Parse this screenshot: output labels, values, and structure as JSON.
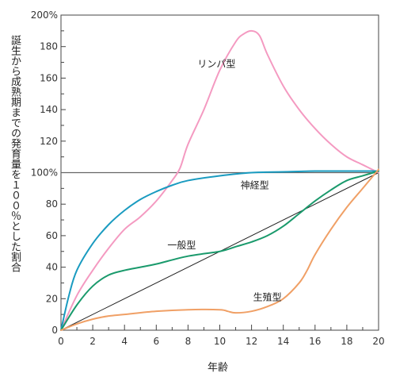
{
  "chart_data": {
    "type": "line",
    "xlabel": "年齢",
    "ylabel": "誕生から成熟期までの発育量を１００％とした割合",
    "xlim": [
      0,
      20
    ],
    "ylim": [
      0,
      200
    ],
    "x_ticks": [
      "0",
      "2",
      "4",
      "6",
      "8",
      "10",
      "12",
      "14",
      "16",
      "18",
      "20"
    ],
    "y_ticks": [
      "0",
      "20",
      "40",
      "60",
      "80",
      "100%",
      "120",
      "140",
      "160",
      "180",
      "200%"
    ],
    "reference_line_y": 100,
    "diagonal": {
      "x": [
        0,
        20
      ],
      "y": [
        0,
        100
      ]
    },
    "series": [
      {
        "name": "リンパ型",
        "color": "#f49ac1",
        "x": [
          0,
          1,
          2,
          3,
          4,
          5,
          6,
          7,
          7.5,
          8,
          9,
          10,
          11,
          11.5,
          12,
          12.5,
          13,
          14,
          15,
          16,
          17,
          18,
          19,
          20
        ],
        "y": [
          0,
          22,
          38,
          52,
          64,
          72,
          82,
          95,
          103,
          118,
          140,
          165,
          183,
          188,
          190,
          187,
          175,
          155,
          140,
          128,
          118,
          110,
          105,
          100
        ]
      },
      {
        "name": "神経型",
        "color": "#1a9bc0",
        "x": [
          0,
          0.5,
          1,
          2,
          3,
          4,
          5,
          6,
          7,
          8,
          10,
          12,
          14,
          16,
          18,
          20
        ],
        "y": [
          0,
          22,
          38,
          55,
          67,
          76,
          83,
          88,
          92,
          95,
          98,
          100,
          100.5,
          101,
          101,
          101
        ]
      },
      {
        "name": "一般型",
        "color": "#1a9a6c",
        "x": [
          0,
          1,
          2,
          3,
          4,
          5,
          6,
          8,
          10,
          11,
          12,
          13,
          14,
          15,
          16,
          17,
          18,
          19,
          20
        ],
        "y": [
          0,
          16,
          28,
          35,
          38,
          40,
          42,
          47,
          50,
          53,
          56,
          60,
          66,
          74,
          82,
          89,
          95,
          98,
          101
        ]
      },
      {
        "name": "生殖型",
        "color": "#f0a066",
        "x": [
          0,
          1,
          2,
          3,
          4,
          6,
          8,
          10,
          10.5,
          11,
          12,
          13,
          14,
          15,
          15.5,
          16,
          17,
          18,
          19,
          20
        ],
        "y": [
          0,
          4,
          7,
          9,
          10,
          12,
          13,
          13,
          12,
          11,
          12,
          15,
          20,
          30,
          38,
          48,
          64,
          78,
          90,
          102
        ]
      }
    ],
    "annotations": [
      {
        "text": "リンパ型",
        "x": 8.6,
        "y": 167
      },
      {
        "text": "神経型",
        "x": 11.3,
        "y": 90
      },
      {
        "text": "一般型",
        "x": 6.7,
        "y": 52
      },
      {
        "text": "生殖型",
        "x": 12.1,
        "y": 19
      }
    ]
  }
}
